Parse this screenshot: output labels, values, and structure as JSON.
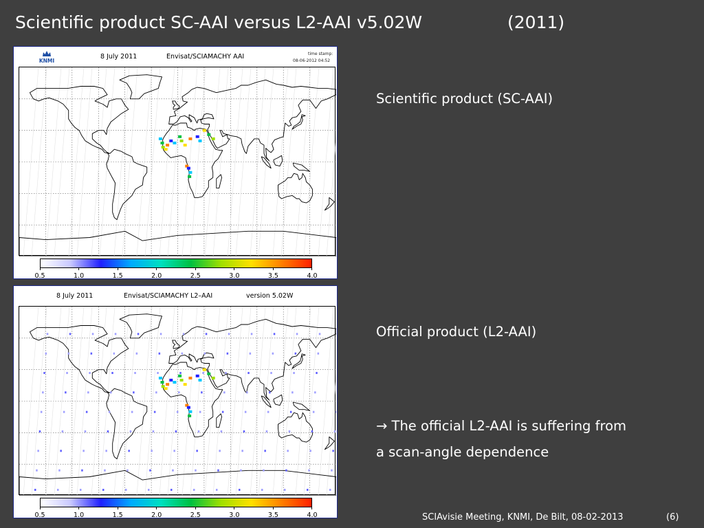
{
  "slide": {
    "title": "Scientific product SC-AAI versus L2-AAI v5.02W",
    "year": "(2011)"
  },
  "panels": [
    {
      "date": "8 July 2011",
      "instrument": "Envisat/SCIAMACHY AAI",
      "logo_text": "KNMI",
      "timestamp_label": "time stamp:",
      "timestamp_value": "08-06-2012 04:52",
      "colorbar_labels": [
        "0.5",
        "1.0",
        "1.5",
        "2.0",
        "2.5",
        "3.0",
        "3.5",
        "4.0"
      ]
    },
    {
      "date": "8 July 2011",
      "instrument": "Envisat/SCIAMACHY L2–AAI",
      "version": "version 5.02W",
      "colorbar_labels": [
        "0.5",
        "1.0",
        "1.5",
        "2.0",
        "2.5",
        "3.0",
        "3.5",
        "4.0"
      ]
    }
  ],
  "colorbar_colors": [
    "#ffffff",
    "#c8c8ff",
    "#1f1fff",
    "#00aaff",
    "#00e0c0",
    "#00c040",
    "#a0e000",
    "#ffe000",
    "#ff8000",
    "#ff2000"
  ],
  "labels": {
    "scientific": "Scientific product (SC-AAI)",
    "official": "Official product (L2-AAI)",
    "conclusion_line1": "→ The official L2-AAI is suffering from",
    "conclusion_line2": "a scan-angle dependence"
  },
  "footer": {
    "text": "SCIAvisie Meeting, KNMI, De Bilt, 08-02-2013",
    "page": "(6)"
  }
}
